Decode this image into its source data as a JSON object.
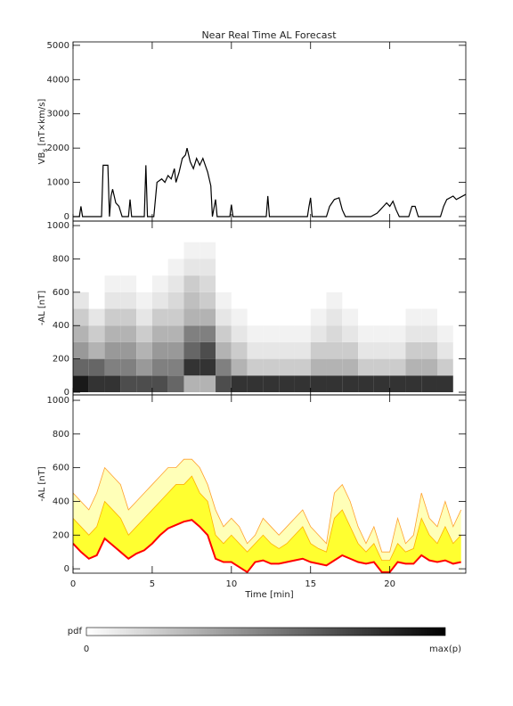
{
  "chart_data": [
    {
      "type": "line",
      "title": "Near Real Time AL Forecast",
      "ylabel": "VB",
      "ylabel_sub": "s",
      "ylabel_unit": "[nT×km/s]",
      "xlim": [
        0,
        24.8
      ],
      "xticks": [
        0,
        5,
        10,
        15,
        20
      ],
      "show_xtick_labels": false,
      "ylim": [
        -130,
        5100
      ],
      "yticks": [
        0,
        1000,
        2000,
        3000,
        4000,
        5000
      ],
      "x": [
        0,
        0.4,
        0.5,
        0.6,
        1.8,
        1.9,
        2.2,
        2.3,
        2.4,
        2.5,
        2.7,
        2.9,
        3.1,
        3.5,
        3.6,
        3.7,
        4.5,
        4.6,
        4.7,
        5.1,
        5.3,
        5.6,
        5.8,
        6.0,
        6.2,
        6.4,
        6.5,
        6.7,
        6.9,
        7.1,
        7.2,
        7.4,
        7.6,
        7.8,
        8.0,
        8.2,
        8.5,
        8.7,
        8.8,
        9.0,
        9.1,
        9.9,
        10.0,
        10.1,
        12.2,
        12.3,
        12.4,
        14.8,
        14.9,
        15.0,
        15.1,
        16.0,
        16.2,
        16.5,
        16.8,
        17.0,
        17.2,
        18.8,
        19.2,
        19.4,
        19.6,
        19.8,
        20.0,
        20.2,
        20.4,
        20.6,
        21.2,
        21.4,
        21.6,
        21.8,
        23.2,
        23.4,
        23.6,
        24.0,
        24.2,
        24.8
      ],
      "series": [
        {
          "color": "#000000",
          "values": [
            0,
            0,
            300,
            0,
            0,
            1500,
            1500,
            0,
            600,
            800,
            400,
            300,
            0,
            0,
            500,
            0,
            0,
            1500,
            0,
            0,
            1000,
            1100,
            1000,
            1200,
            1100,
            1400,
            1000,
            1300,
            1700,
            1800,
            2000,
            1600,
            1400,
            1700,
            1500,
            1700,
            1300,
            900,
            0,
            500,
            0,
            0,
            350,
            0,
            0,
            600,
            0,
            0,
            300,
            550,
            0,
            0,
            300,
            500,
            550,
            200,
            0,
            0,
            100,
            200,
            300,
            400,
            300,
            450,
            200,
            0,
            0,
            300,
            300,
            0,
            0,
            300,
            500,
            600,
            500,
            650
          ]
        }
      ]
    },
    {
      "type": "heatmap",
      "ylabel": "-AL [nT]",
      "xlim": [
        0,
        24.8
      ],
      "xticks": [
        0,
        5,
        10,
        15,
        20
      ],
      "show_xtick_labels": false,
      "ylim": [
        -16,
        1027
      ],
      "yticks": [
        0,
        200,
        400,
        600,
        800,
        1000
      ],
      "x_edges": [
        0,
        1,
        2,
        3,
        4,
        5,
        6,
        7,
        8,
        9,
        10,
        11,
        12,
        13,
        14,
        15,
        16,
        17,
        18,
        19,
        20,
        21,
        22,
        23,
        24
      ],
      "y_edges": [
        0,
        100,
        200,
        300,
        400,
        500,
        600,
        700,
        800,
        900,
        1000
      ],
      "z": [
        [
          0.9,
          0.8,
          0.8,
          0.7,
          0.7,
          0.7,
          0.6,
          0.3,
          0.3,
          0.7,
          0.8,
          0.8,
          0.8,
          0.8,
          0.8,
          0.8,
          0.8,
          0.8,
          0.8,
          0.8,
          0.8,
          0.8,
          0.8,
          0.8
        ],
        [
          0.6,
          0.6,
          0.5,
          0.5,
          0.4,
          0.5,
          0.5,
          0.8,
          0.8,
          0.5,
          0.3,
          0.2,
          0.2,
          0.2,
          0.2,
          0.3,
          0.3,
          0.3,
          0.2,
          0.2,
          0.2,
          0.3,
          0.3,
          0.2
        ],
        [
          0.4,
          0.3,
          0.4,
          0.4,
          0.3,
          0.4,
          0.4,
          0.6,
          0.7,
          0.3,
          0.2,
          0.1,
          0.1,
          0.1,
          0.1,
          0.2,
          0.2,
          0.2,
          0.1,
          0.1,
          0.1,
          0.2,
          0.2,
          0.1
        ],
        [
          0.3,
          0.2,
          0.3,
          0.3,
          0.2,
          0.3,
          0.3,
          0.5,
          0.5,
          0.2,
          0.1,
          0.05,
          0.05,
          0.05,
          0.05,
          0.1,
          0.15,
          0.1,
          0.05,
          0.05,
          0.05,
          0.1,
          0.1,
          0.05
        ],
        [
          0.2,
          0.1,
          0.2,
          0.2,
          0.1,
          0.2,
          0.2,
          0.3,
          0.3,
          0.1,
          0.05,
          0,
          0,
          0,
          0,
          0.05,
          0.1,
          0.05,
          0,
          0,
          0,
          0.05,
          0.05,
          0
        ],
        [
          0.1,
          0,
          0.1,
          0.1,
          0.05,
          0.1,
          0.15,
          0.25,
          0.2,
          0.05,
          0,
          0,
          0,
          0,
          0,
          0,
          0.05,
          0,
          0,
          0,
          0,
          0,
          0,
          0
        ],
        [
          0,
          0,
          0.05,
          0.05,
          0,
          0.05,
          0.1,
          0.2,
          0.15,
          0,
          0,
          0,
          0,
          0,
          0,
          0,
          0,
          0,
          0,
          0,
          0,
          0,
          0,
          0
        ],
        [
          0,
          0,
          0,
          0,
          0,
          0,
          0.05,
          0.1,
          0.1,
          0,
          0,
          0,
          0,
          0,
          0,
          0,
          0,
          0,
          0,
          0,
          0,
          0,
          0,
          0
        ],
        [
          0,
          0,
          0,
          0,
          0,
          0,
          0,
          0.05,
          0.05,
          0,
          0,
          0,
          0,
          0,
          0,
          0,
          0,
          0,
          0,
          0,
          0,
          0,
          0,
          0
        ],
        [
          0,
          0,
          0,
          0,
          0,
          0,
          0,
          0,
          0,
          0,
          0,
          0,
          0,
          0,
          0,
          0,
          0,
          0,
          0,
          0,
          0,
          0,
          0,
          0
        ]
      ]
    },
    {
      "type": "band",
      "ylabel": "-AL [nT]",
      "xlabel": "Time [min]",
      "xlim": [
        0,
        24.8
      ],
      "xticks": [
        0,
        5,
        10,
        15,
        20
      ],
      "show_xtick_labels": true,
      "ylim": [
        -26,
        1032
      ],
      "yticks": [
        0,
        200,
        400,
        600,
        800,
        1000
      ],
      "x": [
        0,
        0.5,
        1,
        1.5,
        2,
        2.5,
        3,
        3.5,
        4,
        4.5,
        5,
        5.5,
        6,
        6.5,
        7,
        7.5,
        8,
        8.5,
        9,
        9.5,
        10,
        10.5,
        11,
        11.5,
        12,
        12.5,
        13,
        13.5,
        14,
        14.5,
        15,
        15.5,
        16,
        16.5,
        17,
        17.5,
        18,
        18.5,
        19,
        19.5,
        20,
        20.5,
        21,
        21.5,
        22,
        22.5,
        23,
        23.5,
        24,
        24.5
      ],
      "series": [
        {
          "color": "#ffa030",
          "fill": "#ffffb8",
          "values": [
            450,
            400,
            350,
            450,
            600,
            550,
            500,
            350,
            400,
            450,
            500,
            550,
            600,
            600,
            650,
            650,
            600,
            500,
            350,
            250,
            300,
            250,
            150,
            200,
            300,
            250,
            200,
            250,
            300,
            350,
            250,
            200,
            150,
            450,
            500,
            400,
            250,
            150,
            250,
            100,
            100,
            300,
            150,
            200,
            450,
            300,
            250,
            400,
            250,
            350
          ]
        },
        {
          "color": "#ffb000",
          "fill": "#ffff30",
          "values": [
            300,
            250,
            200,
            250,
            400,
            350,
            300,
            200,
            250,
            300,
            350,
            400,
            450,
            500,
            500,
            550,
            450,
            400,
            200,
            150,
            200,
            150,
            100,
            150,
            200,
            150,
            120,
            150,
            200,
            250,
            150,
            120,
            100,
            300,
            350,
            250,
            150,
            100,
            150,
            50,
            50,
            150,
            100,
            120,
            300,
            200,
            150,
            250,
            150,
            200
          ]
        },
        {
          "color": "#ff0000",
          "values": [
            150,
            100,
            60,
            80,
            180,
            140,
            100,
            60,
            90,
            110,
            150,
            200,
            240,
            260,
            280,
            290,
            250,
            200,
            60,
            40,
            40,
            10,
            -20,
            40,
            50,
            30,
            30,
            40,
            50,
            60,
            40,
            30,
            20,
            50,
            80,
            60,
            40,
            30,
            40,
            -20,
            -20,
            40,
            30,
            30,
            80,
            50,
            40,
            50,
            30,
            40
          ]
        }
      ]
    }
  ],
  "colorbar": {
    "label": "pdf",
    "min_label": "0",
    "max_label": "max(p)"
  }
}
